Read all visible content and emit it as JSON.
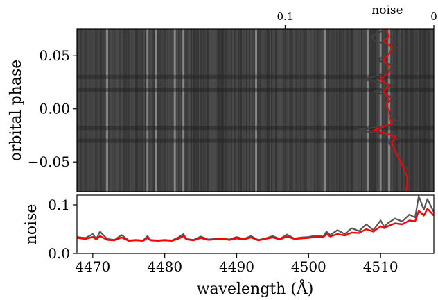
{
  "chart_data": [
    {
      "id": "top-panel",
      "type": "heatmap",
      "ylabel": "orbital phase",
      "ylim": [
        -0.078,
        0.075
      ],
      "yticks": [
        0.05,
        0.0,
        -0.05
      ],
      "ytick_labels": [
        "0.05",
        "0.00",
        "−0.05"
      ],
      "xlim": [
        4467.8,
        4517.4
      ],
      "colormap": "grayscale",
      "bright_columns": [
        4472,
        4477.6,
        4478.8,
        4481.4,
        4482.6,
        4492.7,
        4502.3,
        4508.2,
        4510.0,
        4511.2
      ],
      "dark_bands_phase": [
        0.03,
        0.018,
        -0.018,
        -0.03
      ],
      "noise_axis": {
        "label": "noise",
        "ticks": [
          0.1,
          0
        ],
        "tick_labels": [
          "0.1",
          "0"
        ],
        "range": [
          0.24,
          0.0
        ]
      },
      "noise_profile": {
        "phase": [
          0.074,
          0.068,
          0.064,
          0.058,
          0.052,
          0.046,
          0.04,
          0.034,
          0.028,
          0.022,
          0.016,
          0.01,
          0.004,
          -0.002,
          -0.008,
          -0.014,
          -0.02,
          -0.026,
          -0.032,
          -0.04,
          -0.048,
          -0.056,
          -0.064,
          -0.072,
          -0.078
        ],
        "series": [
          {
            "color": "#404040",
            "values": [
              0.034,
              0.042,
              0.04,
              0.024,
              0.03,
              0.038,
              0.026,
              0.032,
              0.046,
              0.028,
              0.04,
              0.026,
              0.034,
              0.03,
              0.028,
              0.022,
              0.052,
              0.02,
              0.03,
              0.026,
              0.022,
              0.018,
              0.016,
              0.017,
              0.018
            ]
          },
          {
            "color": "#ff0000",
            "values": [
              0.032,
              0.03,
              0.034,
              0.028,
              0.03,
              0.034,
              0.03,
              0.03,
              0.036,
              0.03,
              0.034,
              0.03,
              0.032,
              0.03,
              0.03,
              0.028,
              0.04,
              0.026,
              0.028,
              0.026,
              0.023,
              0.02,
              0.018,
              0.018,
              0.019
            ]
          }
        ]
      }
    },
    {
      "id": "bottom-panel",
      "type": "line",
      "xlabel": "wavelength (Å)",
      "ylabel": "noise",
      "xlim": [
        4467.8,
        4517.4
      ],
      "ylim": [
        0.0,
        0.12
      ],
      "xticks": [
        4470,
        4480,
        4490,
        4500,
        4510
      ],
      "xtick_labels": [
        "4470",
        "4480",
        "4490",
        "4500",
        "4510"
      ],
      "yticks": [
        0.0,
        0.1
      ],
      "ytick_labels": [
        "0.0",
        "0.1"
      ],
      "x": [
        4467.8,
        4469,
        4470,
        4470.5,
        4471,
        4472,
        4473,
        4474,
        4475,
        4476,
        4477,
        4477.6,
        4478,
        4479,
        4480,
        4481,
        4482,
        4482.6,
        4483,
        4484,
        4485,
        4486,
        4487,
        4488,
        4489,
        4490,
        4491,
        4492,
        4492.7,
        4493,
        4494,
        4495,
        4496,
        4497,
        4498,
        4499,
        4500,
        4501,
        4502,
        4502.5,
        4503,
        4504,
        4505,
        4506,
        4507,
        4508,
        4509,
        4510,
        4510.5,
        4511,
        4512,
        4513,
        4514,
        4514.8,
        4515.3,
        4516,
        4516.5,
        4517.4
      ],
      "series": [
        {
          "color": "#555555",
          "values": [
            0.034,
            0.032,
            0.04,
            0.03,
            0.045,
            0.03,
            0.028,
            0.038,
            0.027,
            0.028,
            0.027,
            0.036,
            0.028,
            0.027,
            0.028,
            0.027,
            0.034,
            0.04,
            0.03,
            0.028,
            0.035,
            0.029,
            0.03,
            0.031,
            0.029,
            0.034,
            0.03,
            0.036,
            0.03,
            0.028,
            0.031,
            0.036,
            0.03,
            0.039,
            0.031,
            0.033,
            0.034,
            0.037,
            0.035,
            0.045,
            0.038,
            0.048,
            0.04,
            0.052,
            0.046,
            0.06,
            0.048,
            0.068,
            0.055,
            0.062,
            0.072,
            0.066,
            0.08,
            0.074,
            0.118,
            0.09,
            0.112,
            0.085
          ]
        },
        {
          "color": "#ff0000",
          "values": [
            0.032,
            0.03,
            0.034,
            0.029,
            0.036,
            0.028,
            0.027,
            0.033,
            0.026,
            0.027,
            0.026,
            0.032,
            0.027,
            0.026,
            0.027,
            0.026,
            0.031,
            0.036,
            0.029,
            0.027,
            0.032,
            0.028,
            0.029,
            0.03,
            0.028,
            0.031,
            0.029,
            0.033,
            0.029,
            0.027,
            0.03,
            0.033,
            0.029,
            0.035,
            0.03,
            0.031,
            0.032,
            0.034,
            0.033,
            0.04,
            0.035,
            0.04,
            0.037,
            0.043,
            0.042,
            0.05,
            0.045,
            0.056,
            0.052,
            0.056,
            0.062,
            0.06,
            0.068,
            0.066,
            0.088,
            0.078,
            0.092,
            0.078
          ]
        }
      ]
    }
  ]
}
